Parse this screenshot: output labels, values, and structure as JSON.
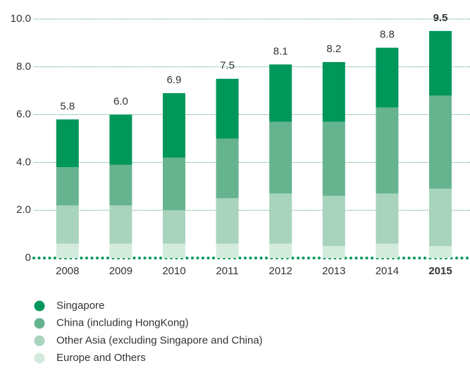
{
  "chart_data": {
    "type": "stacked_bar",
    "categories": [
      "2008",
      "2009",
      "2010",
      "2011",
      "2012",
      "2013",
      "2014",
      "2015"
    ],
    "emphasis": "2015",
    "series": [
      {
        "name": "Singapore",
        "color": "#00975a",
        "values": [
          2.0,
          2.1,
          2.7,
          2.5,
          2.4,
          2.5,
          2.5,
          2.7
        ]
      },
      {
        "name": "China (including HongKong)",
        "color": "#66b48f",
        "values": [
          1.6,
          1.7,
          2.2,
          2.5,
          3.0,
          3.1,
          3.6,
          3.9
        ]
      },
      {
        "name": "Other Asia (excluding Singapore and China)",
        "color": "#a8d3bc",
        "values": [
          1.6,
          1.6,
          1.4,
          1.9,
          2.1,
          2.1,
          2.1,
          2.4
        ]
      },
      {
        "name": "Europe and Others",
        "color": "#d3ebdd",
        "values": [
          0.6,
          0.6,
          0.6,
          0.6,
          0.6,
          0.5,
          0.6,
          0.5
        ]
      }
    ],
    "total_labels": [
      "5.8",
      "6.0",
      "6.9",
      "7.5",
      "8.1",
      "8.2",
      "8.8",
      "9.5"
    ],
    "ylim": [
      0,
      10
    ],
    "yticks": [
      0,
      {
        "value": 2,
        "label": "2.0"
      },
      {
        "value": 4,
        "label": "4.0"
      },
      {
        "value": 6,
        "label": "6.0"
      },
      {
        "value": 8,
        "label": "8.0"
      },
      {
        "value": 10,
        "label": "10.0"
      }
    ],
    "grid": true
  }
}
